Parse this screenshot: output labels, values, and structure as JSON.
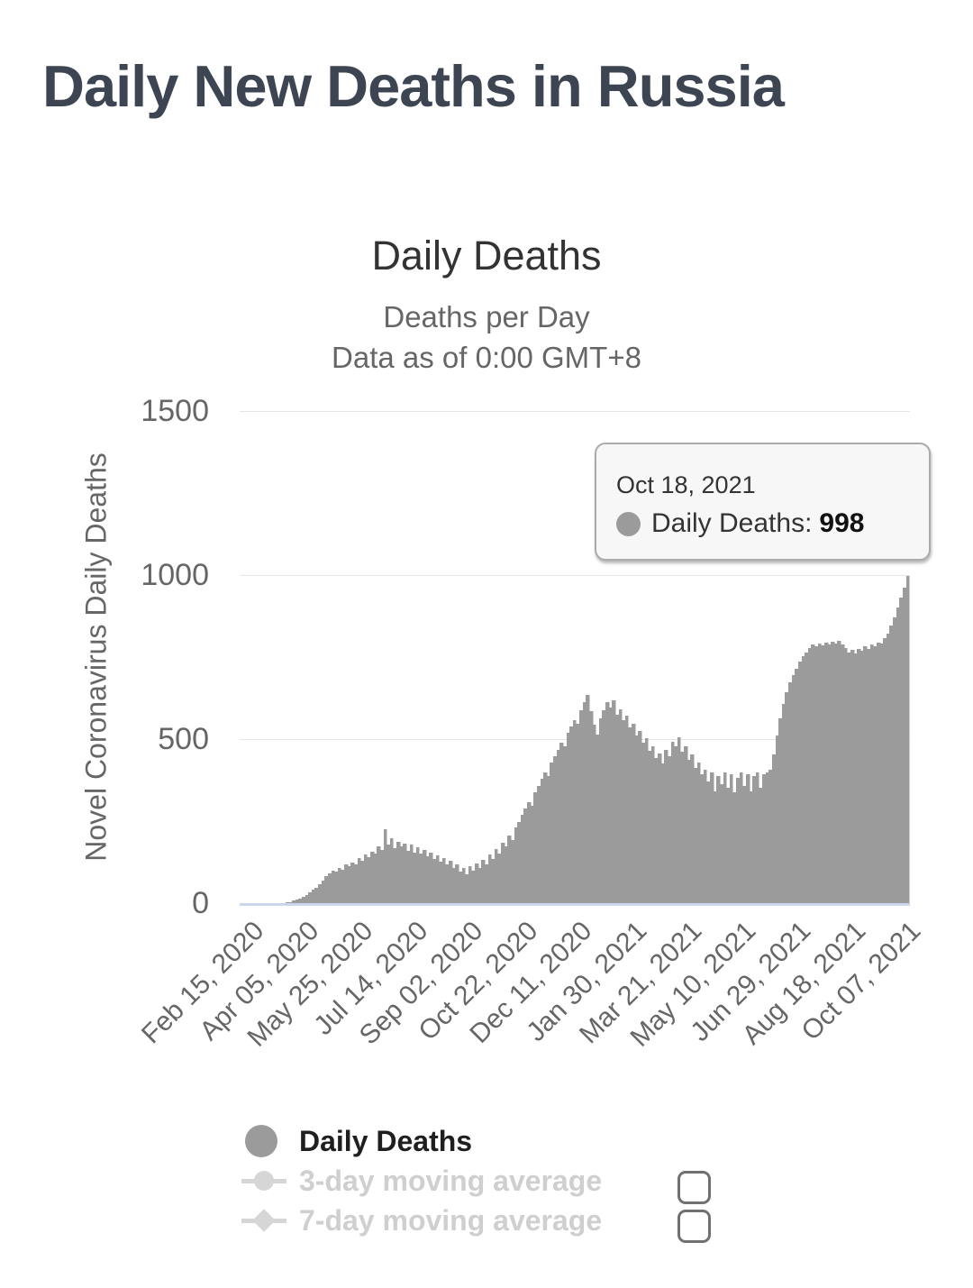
{
  "page": {
    "title": "Daily New Deaths in Russia"
  },
  "chart": {
    "title": "Daily Deaths",
    "subtitle_line1": "Deaths per Day",
    "subtitle_line2": "Data as of 0:00 GMT+8",
    "y_axis_title": "Novel Coronavirus Daily Deaths"
  },
  "tooltip": {
    "date": "Oct 18, 2021",
    "series_label": "Daily Deaths:",
    "value": "998",
    "marker_color": "#9b9b9b"
  },
  "legend": {
    "items": [
      {
        "label": "Daily Deaths",
        "marker": "circle",
        "enabled": true
      },
      {
        "label": "3-day moving average",
        "marker": "line-circle",
        "enabled": false
      },
      {
        "label": "7-day moving average",
        "marker": "line-diamond",
        "enabled": false
      }
    ]
  },
  "colors": {
    "bar": "#9b9b9b",
    "gridline": "#e6e6e6",
    "axis_line": "#ccd6eb",
    "disabled_legend": "#cfcfcf",
    "title_text": "#3d4452"
  },
  "chart_data": {
    "type": "bar",
    "title": "Daily Deaths",
    "subtitle": "Deaths per Day — Data as of 0:00 GMT+8",
    "xlabel": "",
    "ylabel": "Novel Coronavirus Daily Deaths",
    "ylim": [
      0,
      1500
    ],
    "y_ticks": [
      0,
      500,
      1000,
      1500
    ],
    "grid": "horizontal",
    "legend_position": "bottom-left",
    "x_tick_labels": [
      "Feb 15, 2020",
      "Apr 05, 2020",
      "May 25, 2020",
      "Jul 14, 2020",
      "Sep 02, 2020",
      "Oct 22, 2020",
      "Dec 11, 2020",
      "Jan 30, 2021",
      "Mar 21, 2021",
      "May 10, 2021",
      "Jun 29, 2021",
      "Aug 18, 2021",
      "Oct 07, 2021"
    ],
    "x_tick_interval_days": 50,
    "x_total_days": 611,
    "x_start": "Feb 15, 2020",
    "x_end": "Oct 18, 2021",
    "x_step_days": 3,
    "series": [
      {
        "name": "Daily Deaths",
        "color": "#9b9b9b",
        "values": [
          0,
          0,
          0,
          0,
          0,
          0,
          0,
          0,
          0,
          0,
          0,
          0,
          0,
          0,
          2,
          4,
          7,
          10,
          14,
          19,
          25,
          32,
          40,
          48,
          57,
          70,
          82,
          92,
          98,
          95,
          108,
          102,
          118,
          112,
          125,
          118,
          138,
          130,
          148,
          140,
          158,
          150,
          172,
          162,
          224,
          178,
          198,
          168,
          188,
          172,
          182,
          160,
          178,
          155,
          170,
          150,
          163,
          144,
          155,
          135,
          146,
          126,
          138,
          118,
          128,
          108,
          118,
          95,
          108,
          88,
          112,
          98,
          122,
          108,
          132,
          118,
          148,
          135,
          165,
          152,
          185,
          172,
          205,
          192,
          232,
          248,
          268,
          288,
          308,
          298,
          338,
          358,
          378,
          398,
          388,
          428,
          448,
          468,
          488,
          478,
          518,
          538,
          558,
          548,
          588,
          612,
          635,
          585,
          545,
          515,
          562,
          588,
          612,
          595,
          618,
          575,
          592,
          558,
          572,
          535,
          548,
          512,
          525,
          488,
          502,
          465,
          478,
          442,
          455,
          425,
          468,
          448,
          492,
          478,
          505,
          462,
          478,
          438,
          452,
          412,
          428,
          392,
          408,
          372,
          398,
          342,
          388,
          362,
          398,
          352,
          392,
          338,
          382,
          398,
          358,
          392,
          342,
          388,
          398,
          352,
          392,
          398,
          408,
          452,
          512,
          562,
          608,
          642,
          672,
          695,
          715,
          735,
          752,
          765,
          778,
          788,
          782,
          792,
          786,
          795,
          788,
          798,
          790,
          800,
          788,
          778,
          765,
          772,
          762,
          775,
          768,
          782,
          775,
          788,
          782,
          795,
          790,
          808,
          822,
          845,
          872,
          902,
          932,
          962,
          998
        ]
      },
      {
        "name": "3-day moving average",
        "enabled": false,
        "values": []
      },
      {
        "name": "7-day moving average",
        "enabled": false,
        "values": []
      }
    ],
    "highlight_point": {
      "date": "Oct 18, 2021",
      "series": "Daily Deaths",
      "value": 998
    }
  }
}
